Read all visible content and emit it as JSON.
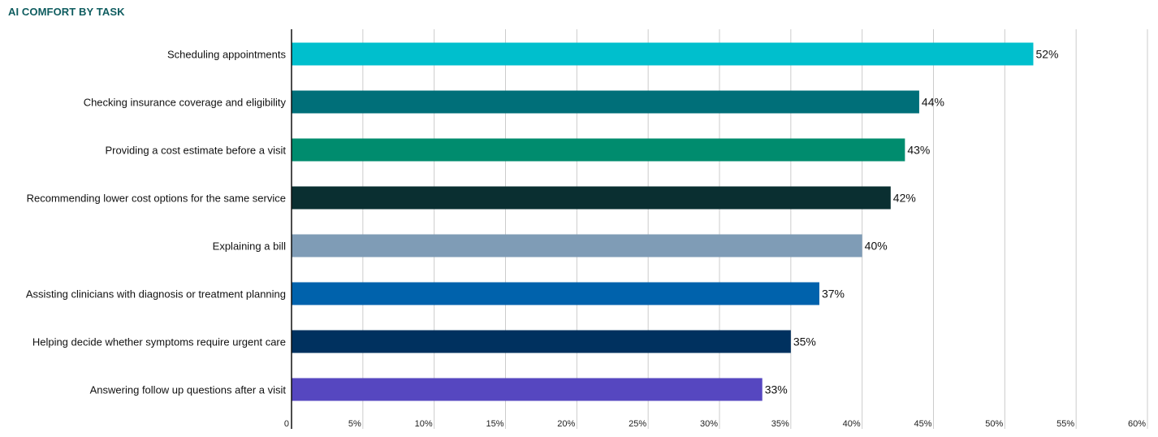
{
  "chart_data": {
    "type": "bar",
    "orientation": "horizontal",
    "title": "AI COMFORT BY TASK",
    "categories": [
      "Scheduling appointments",
      "Checking insurance coverage and eligibility",
      "Providing a cost estimate before a visit",
      "Recommending lower cost options for the same service",
      "Explaining a bill",
      "Assisting clinicians with diagnosis or treatment planning",
      "Helping decide whether symptoms require urgent care",
      "Answering follow up questions after a visit"
    ],
    "values": [
      52,
      44,
      43,
      42,
      40,
      37,
      35,
      33
    ],
    "value_labels": [
      "52%",
      "44%",
      "43%",
      "42%",
      "40%",
      "37%",
      "35%",
      "33%"
    ],
    "colors": [
      "#00bfcd",
      "#006f79",
      "#008c6e",
      "#0a2f31",
      "#7f9cb6",
      "#0062ac",
      "#00315f",
      "#5647c0"
    ],
    "xlim": [
      0,
      60
    ],
    "xticks": [
      0,
      5,
      10,
      15,
      20,
      25,
      30,
      35,
      40,
      45,
      50,
      55,
      60
    ],
    "xtick_labels": [
      "0",
      "5%",
      "10%",
      "15%",
      "20%",
      "25%",
      "30%",
      "35%",
      "40%",
      "45%",
      "50%",
      "55%",
      "60%"
    ],
    "grid": "vertical",
    "legend": "none",
    "xlabel": "",
    "ylabel": ""
  }
}
